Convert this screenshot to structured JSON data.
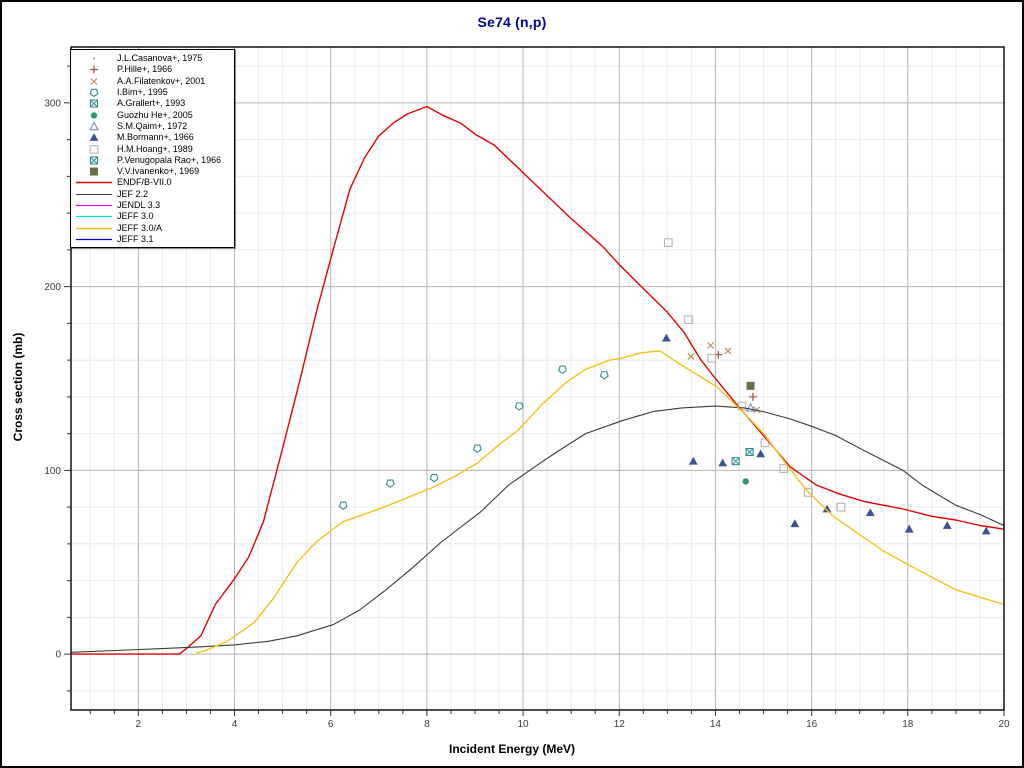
{
  "title": "Se74 (n,p)",
  "title_color": "#000099",
  "chart_data": {
    "type": "line",
    "title": "Se74 (n,p)",
    "xlabel": "Incident Energy (MeV)",
    "ylabel": "Cross section (mb)",
    "xlim": [
      0.6,
      20.0
    ],
    "ylim": [
      -30.4,
      330.4
    ],
    "x_major_ticks": [
      2,
      4,
      6,
      8,
      10,
      12,
      14,
      16,
      18,
      20
    ],
    "x_minor_step": 0.5,
    "y_major_ticks": [
      0,
      100,
      200,
      300
    ],
    "y_minor_step": 20,
    "grid": true,
    "grid_major_color": "#b5b5b5",
    "grid_minor_color": "#ebebeb",
    "frame_color": "#000000",
    "tick_label_color": "#3d3d3d",
    "legend_position": "top-left",
    "series": [
      {
        "label": "J.L.Casanova+, 1975",
        "kind": "scatter",
        "marker": "dot",
        "color": "#8a6a5a",
        "points": []
      },
      {
        "label": "P.Hille+, 1966",
        "kind": "scatter",
        "marker": "plus",
        "color": "#a8584e",
        "points": [
          [
            14.06,
            163
          ],
          [
            14.78,
            140
          ]
        ]
      },
      {
        "label": "A.A.Filatenkov+, 2001",
        "kind": "scatter",
        "marker": "x",
        "color": "#c08a50",
        "points": [
          [
            13.49,
            162
          ],
          [
            13.9,
            168
          ],
          [
            14.26,
            165
          ],
          [
            14.86,
            133
          ]
        ]
      },
      {
        "label": "I.Bim+, 1995",
        "kind": "scatter",
        "marker": "pentagon",
        "color": "#2f8f8f",
        "points": [
          [
            6.26,
            81
          ],
          [
            7.24,
            93
          ],
          [
            8.15,
            96
          ],
          [
            9.05,
            112
          ],
          [
            9.92,
            135
          ],
          [
            10.82,
            155
          ],
          [
            11.69,
            152
          ]
        ]
      },
      {
        "label": "A.Grallert+, 1993",
        "kind": "scatter",
        "marker": "square-x",
        "color": "#2f8f8f",
        "points": [
          [
            14.42,
            105
          ]
        ]
      },
      {
        "label": "Guozhu He+, 2005",
        "kind": "scatter",
        "marker": "circle",
        "color": "#2f9572",
        "points": [
          [
            14.63,
            94
          ]
        ]
      },
      {
        "label": "S.M.Qaim+, 1972",
        "kind": "scatter",
        "marker": "triangle-open",
        "color": "#6f93c0",
        "points": [
          [
            14.73,
            134
          ]
        ]
      },
      {
        "label": "M.Bormann+, 1966",
        "kind": "scatter",
        "marker": "triangle",
        "color": "#3d5290",
        "points": [
          [
            12.98,
            172
          ],
          [
            13.54,
            105
          ],
          [
            14.15,
            104
          ],
          [
            14.94,
            109
          ],
          [
            15.65,
            71
          ],
          [
            16.32,
            79
          ],
          [
            17.22,
            77
          ],
          [
            18.03,
            68
          ],
          [
            18.82,
            70
          ],
          [
            19.63,
            67
          ]
        ]
      },
      {
        "label": "H.M.Hoang+, 1989",
        "kind": "scatter",
        "marker": "square-open",
        "color": "#b5b5b5",
        "points": [
          [
            13.02,
            224
          ],
          [
            13.44,
            182
          ],
          [
            13.92,
            161
          ],
          [
            14.55,
            135
          ],
          [
            15.03,
            115
          ],
          [
            15.42,
            101
          ],
          [
            15.93,
            88
          ],
          [
            16.61,
            80
          ]
        ]
      },
      {
        "label": "P.Venugopala Rao+, 1966",
        "kind": "scatter",
        "marker": "square-x",
        "color": "#2f8f8f",
        "points": [
          [
            14.71,
            110
          ]
        ]
      },
      {
        "label": "V.V.Ivanenko+, 1969",
        "kind": "scatter",
        "marker": "square",
        "color": "#6b7045",
        "points": [
          [
            14.73,
            146
          ]
        ]
      },
      {
        "label": "ENDF/B-VII.0",
        "kind": "line",
        "color": "#e60000",
        "width": 1.4,
        "points": [
          [
            0.6,
            0
          ],
          [
            1.2,
            0
          ],
          [
            1.8,
            0
          ],
          [
            2.4,
            0
          ],
          [
            2.85,
            0
          ],
          [
            3.0,
            3
          ],
          [
            3.3,
            10
          ],
          [
            3.6,
            27
          ],
          [
            4.0,
            41
          ],
          [
            4.3,
            53
          ],
          [
            4.6,
            72
          ],
          [
            5.0,
            112
          ],
          [
            5.35,
            148
          ],
          [
            5.7,
            186
          ],
          [
            6.05,
            220
          ],
          [
            6.4,
            253
          ],
          [
            6.7,
            270
          ],
          [
            7.0,
            282
          ],
          [
            7.3,
            289
          ],
          [
            7.6,
            294
          ],
          [
            8.0,
            298
          ],
          [
            8.35,
            293
          ],
          [
            8.7,
            289
          ],
          [
            9.0,
            283
          ],
          [
            9.4,
            277
          ],
          [
            10.0,
            262
          ],
          [
            10.6,
            247
          ],
          [
            11.0,
            237
          ],
          [
            11.65,
            222
          ],
          [
            12.0,
            212
          ],
          [
            12.5,
            199
          ],
          [
            13.0,
            186
          ],
          [
            13.35,
            175
          ],
          [
            13.7,
            160
          ],
          [
            14.0,
            150
          ],
          [
            14.5,
            134
          ],
          [
            15.0,
            119
          ],
          [
            15.55,
            102
          ],
          [
            16.1,
            92
          ],
          [
            16.6,
            87
          ],
          [
            17.1,
            83
          ],
          [
            17.9,
            79
          ],
          [
            18.5,
            75
          ],
          [
            19.0,
            73
          ],
          [
            19.5,
            70
          ],
          [
            20.0,
            68
          ]
        ]
      },
      {
        "label": "JEF 2.2",
        "kind": "line",
        "color": "#3a3a3a",
        "width": 1.1,
        "points": [
          [
            0.6,
            1
          ],
          [
            1.5,
            2
          ],
          [
            2.5,
            3
          ],
          [
            3.3,
            4
          ],
          [
            4.0,
            5
          ],
          [
            4.7,
            7
          ],
          [
            5.3,
            10
          ],
          [
            6.05,
            16
          ],
          [
            6.6,
            24
          ],
          [
            7.15,
            35
          ],
          [
            7.7,
            47
          ],
          [
            8.3,
            61
          ],
          [
            9.1,
            77
          ],
          [
            9.7,
            92
          ],
          [
            10.3,
            103
          ],
          [
            10.7,
            110
          ],
          [
            11.3,
            120
          ],
          [
            12.05,
            127
          ],
          [
            12.7,
            132
          ],
          [
            13.3,
            134
          ],
          [
            14.0,
            135
          ],
          [
            14.6,
            134
          ],
          [
            15.0,
            132
          ],
          [
            15.55,
            128
          ],
          [
            16.0,
            124
          ],
          [
            16.5,
            119
          ],
          [
            17.0,
            112
          ],
          [
            17.9,
            100
          ],
          [
            18.3,
            92
          ],
          [
            19.0,
            81
          ],
          [
            19.5,
            76
          ],
          [
            20.0,
            70
          ]
        ]
      },
      {
        "label": "JENDL 3.3",
        "kind": "line",
        "color": "#ff00ff",
        "width": 1.2,
        "points": []
      },
      {
        "label": "JEFF 3.0",
        "kind": "line",
        "color": "#00e0e0",
        "width": 1.2,
        "points": []
      },
      {
        "label": "JEFF 3.0/A",
        "kind": "line",
        "color": "#f3c21b",
        "width": 1.4,
        "points": [
          [
            3.2,
            0.5
          ],
          [
            3.4,
            2
          ],
          [
            3.85,
            7
          ],
          [
            4.4,
            17
          ],
          [
            4.8,
            30
          ],
          [
            5.3,
            50
          ],
          [
            5.7,
            61
          ],
          [
            6.25,
            72
          ],
          [
            6.9,
            78
          ],
          [
            7.2,
            81
          ],
          [
            8.15,
            91
          ],
          [
            8.6,
            97
          ],
          [
            9.05,
            104
          ],
          [
            9.5,
            114
          ],
          [
            9.9,
            122
          ],
          [
            10.4,
            136
          ],
          [
            10.9,
            148
          ],
          [
            11.3,
            155
          ],
          [
            11.8,
            160
          ],
          [
            12.05,
            161
          ],
          [
            12.45,
            164
          ],
          [
            12.85,
            165
          ],
          [
            13.25,
            158
          ],
          [
            13.75,
            150
          ],
          [
            14.05,
            145
          ],
          [
            14.6,
            131
          ],
          [
            15.0,
            120
          ],
          [
            15.4,
            106
          ],
          [
            15.9,
            89
          ],
          [
            16.45,
            75
          ],
          [
            17.0,
            65
          ],
          [
            17.5,
            56
          ],
          [
            18.05,
            48
          ],
          [
            19.0,
            35
          ],
          [
            19.5,
            31
          ],
          [
            20.0,
            27
          ]
        ]
      },
      {
        "label": "JEFF 3.1",
        "kind": "line",
        "color": "#0000d0",
        "width": 1.2,
        "points": []
      }
    ]
  }
}
